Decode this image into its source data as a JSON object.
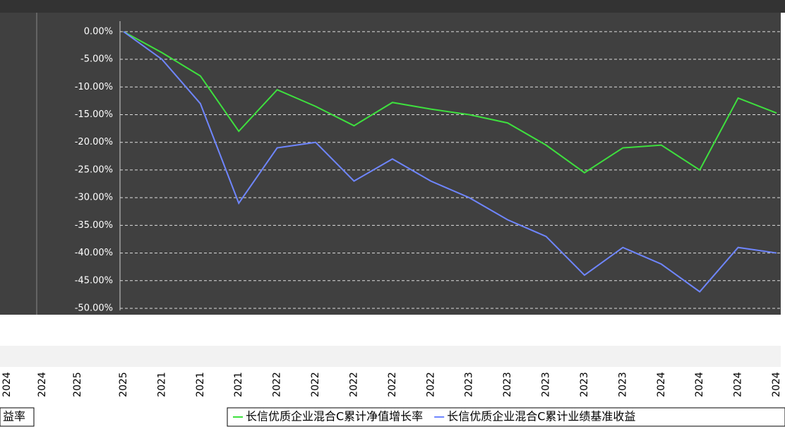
{
  "chart_data": {
    "type": "line",
    "categories": [
      "2025",
      "2021",
      "2021",
      "2021",
      "2022",
      "2022",
      "2022",
      "2022",
      "2022",
      "2023",
      "2023",
      "2023",
      "2023",
      "2023",
      "2024",
      "2024",
      "2024",
      "2024"
    ],
    "series": [
      {
        "name": "长信优质企业混合C累计净值增长率",
        "color": "#3ee03e",
        "values": [
          0,
          -3.8,
          -8,
          -18,
          -10.5,
          -13.5,
          -17,
          -12.8,
          -14,
          -15,
          -16.5,
          -20.5,
          -25.5,
          -21,
          -20.5,
          -25,
          -12,
          -14.7
        ]
      },
      {
        "name": "长信优质企业混合C累计业绩基准收益",
        "color": "#6f86ff",
        "values": [
          0,
          -5,
          -13,
          -31,
          -21,
          -20,
          -27,
          -23,
          -27,
          -30,
          -34,
          -37,
          -44,
          -39,
          -42,
          -47,
          -39,
          -40
        ]
      }
    ],
    "ylim": [
      -50,
      1
    ],
    "yticks": [
      {
        "value": 0,
        "label": "0.00%"
      },
      {
        "value": -5,
        "label": "-5.00%"
      },
      {
        "value": -10,
        "label": "-10.00%"
      },
      {
        "value": -15,
        "label": "-15.00%"
      },
      {
        "value": -20,
        "label": "-20.00%"
      },
      {
        "value": -25,
        "label": "-25.00%"
      },
      {
        "value": -30,
        "label": "-30.00%"
      },
      {
        "value": -35,
        "label": "-35.00%"
      },
      {
        "value": -40,
        "label": "-40.00%"
      },
      {
        "value": -45,
        "label": "-45.00%"
      },
      {
        "value": -50,
        "label": "-50.00%"
      }
    ],
    "left_labels": [
      "2024",
      "2024",
      "2025"
    ],
    "left_legend": "益率",
    "grid": true
  }
}
